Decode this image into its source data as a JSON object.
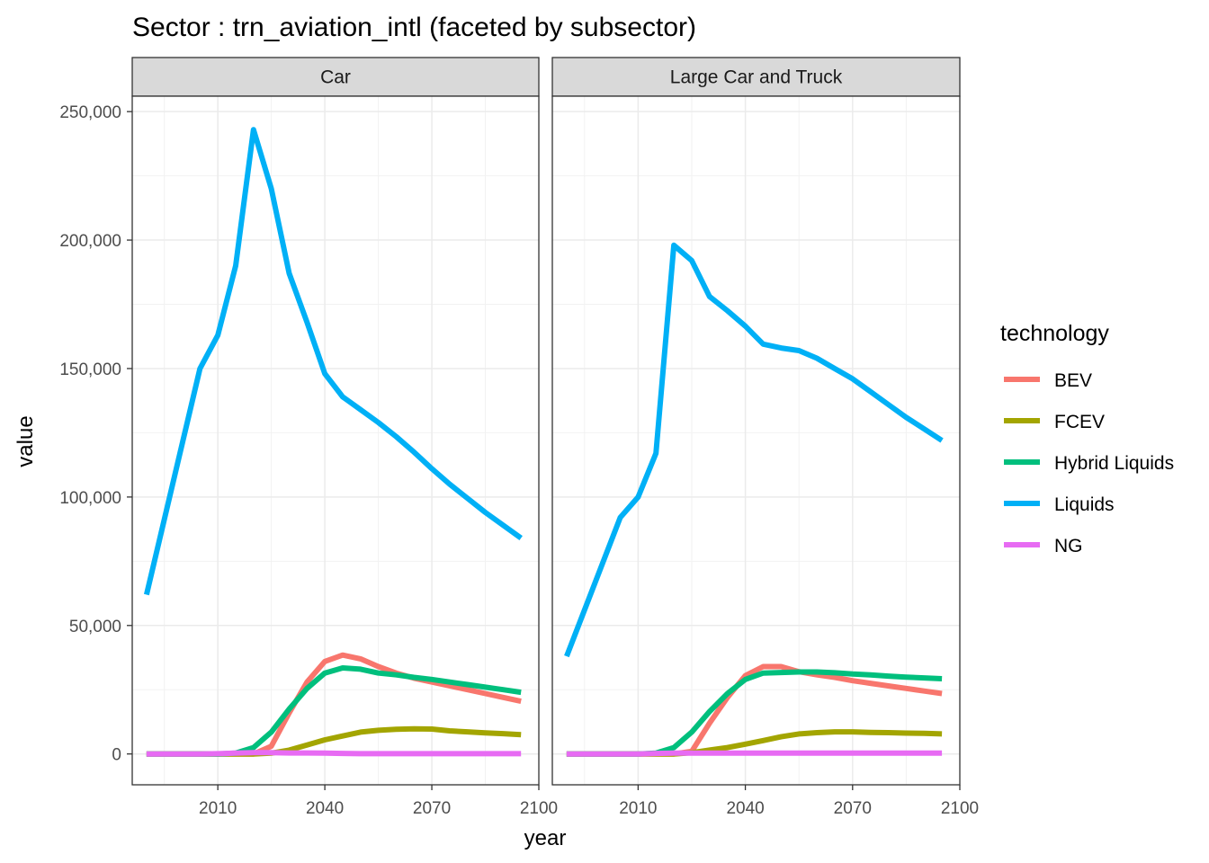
{
  "chart_data": {
    "type": "line",
    "title": "Sector : trn_aviation_intl (faceted by subsector)",
    "xlabel": "year",
    "ylabel": "value",
    "xlim": [
      1986,
      2100
    ],
    "ylim": [
      -12000,
      256000
    ],
    "x_ticks": [
      2010,
      2040,
      2070,
      2100
    ],
    "x_tick_labels": [
      "2010",
      "2040",
      "2070",
      "2100"
    ],
    "y_ticks": [
      0,
      50000,
      100000,
      150000,
      200000,
      250000
    ],
    "y_tick_labels": [
      "0",
      "50,000",
      "100,000",
      "150,000",
      "200,000",
      "250,000"
    ],
    "grid": true,
    "legend": {
      "title": "technology",
      "position": "right",
      "entries": [
        "BEV",
        "FCEV",
        "Hybrid Liquids",
        "Liquids",
        "NG"
      ]
    },
    "colors": {
      "BEV": "#F8766D",
      "FCEV": "#A3A500",
      "Hybrid Liquids": "#00BF7D",
      "Liquids": "#00B0F6",
      "NG": "#E76BF3"
    },
    "facets": [
      {
        "label": "Car",
        "series": [
          {
            "name": "Liquids",
            "x": [
              1990,
              2005,
              2010,
              2015,
              2020,
              2025,
              2030,
              2035,
              2040,
              2045,
              2050,
              2055,
              2060,
              2065,
              2070,
              2075,
              2080,
              2085,
              2090,
              2095
            ],
            "y": [
              62000,
              150000,
              163000,
              190000,
              243000,
              220000,
              187000,
              168000,
              148000,
              139000,
              134000,
              129000,
              123500,
              117500,
              111000,
              105000,
              99500,
              94000,
              89000,
              84000
            ]
          },
          {
            "name": "BEV",
            "x": [
              1990,
              2005,
              2010,
              2015,
              2020,
              2025,
              2030,
              2035,
              2040,
              2045,
              2050,
              2055,
              2060,
              2065,
              2070,
              2075,
              2080,
              2085,
              2090,
              2095
            ],
            "y": [
              0,
              0,
              0,
              0,
              0,
              3000,
              16000,
              28000,
              36000,
              38500,
              37000,
              34000,
              31500,
              29500,
              28000,
              26500,
              25000,
              23500,
              22000,
              20500
            ]
          },
          {
            "name": "FCEV",
            "x": [
              1990,
              2005,
              2010,
              2015,
              2020,
              2025,
              2030,
              2035,
              2040,
              2045,
              2050,
              2055,
              2060,
              2065,
              2070,
              2075,
              2080,
              2085,
              2090,
              2095
            ],
            "y": [
              0,
              0,
              0,
              0,
              0,
              300,
              1500,
              3500,
              5500,
              7000,
              8500,
              9200,
              9600,
              9800,
              9700,
              9000,
              8600,
              8200,
              7900,
              7500
            ]
          },
          {
            "name": "Hybrid Liquids",
            "x": [
              1990,
              2005,
              2010,
              2015,
              2020,
              2025,
              2030,
              2035,
              2040,
              2045,
              2050,
              2055,
              2060,
              2065,
              2070,
              2075,
              2080,
              2085,
              2090,
              2095
            ],
            "y": [
              0,
              0,
              0,
              300,
              2500,
              8500,
              17500,
              25500,
              31500,
              33500,
              33000,
              31500,
              30800,
              29800,
              29000,
              28000,
              27000,
              26000,
              25000,
              24000
            ]
          },
          {
            "name": "NG",
            "x": [
              1990,
              2005,
              2010,
              2015,
              2020,
              2025,
              2030,
              2035,
              2040,
              2045,
              2050,
              2055,
              2060,
              2065,
              2070,
              2075,
              2080,
              2085,
              2090,
              2095
            ],
            "y": [
              0,
              0,
              100,
              300,
              500,
              500,
              400,
              400,
              300,
              200,
              100,
              100,
              100,
              100,
              100,
              100,
              100,
              100,
              100,
              100
            ]
          }
        ]
      },
      {
        "label": "Large Car and Truck",
        "series": [
          {
            "name": "Liquids",
            "x": [
              1990,
              2005,
              2010,
              2015,
              2020,
              2025,
              2030,
              2035,
              2040,
              2045,
              2050,
              2055,
              2060,
              2065,
              2070,
              2075,
              2080,
              2085,
              2090,
              2095
            ],
            "y": [
              38000,
              92000,
              100000,
              117000,
              198000,
              192000,
              178000,
              172500,
              166500,
              159500,
              158000,
              157000,
              154000,
              150000,
              146000,
              141000,
              136000,
              131000,
              126500,
              122000
            ]
          },
          {
            "name": "BEV",
            "x": [
              1990,
              2005,
              2010,
              2015,
              2020,
              2025,
              2030,
              2035,
              2040,
              2045,
              2050,
              2055,
              2060,
              2065,
              2070,
              2075,
              2080,
              2085,
              2090,
              2095
            ],
            "y": [
              0,
              0,
              0,
              0,
              0,
              1000,
              12000,
              22000,
              30500,
              34000,
              34000,
              32000,
              30800,
              29800,
              28500,
              27500,
              26500,
              25500,
              24500,
              23500
            ]
          },
          {
            "name": "FCEV",
            "x": [
              1990,
              2005,
              2010,
              2015,
              2020,
              2025,
              2030,
              2035,
              2040,
              2045,
              2050,
              2055,
              2060,
              2065,
              2070,
              2075,
              2080,
              2085,
              2090,
              2095
            ],
            "y": [
              0,
              0,
              0,
              0,
              0,
              500,
              1500,
              2500,
              3800,
              5200,
              6700,
              7800,
              8300,
              8600,
              8600,
              8400,
              8300,
              8100,
              8000,
              7800
            ]
          },
          {
            "name": "Hybrid Liquids",
            "x": [
              1990,
              2005,
              2010,
              2015,
              2020,
              2025,
              2030,
              2035,
              2040,
              2045,
              2050,
              2055,
              2060,
              2065,
              2070,
              2075,
              2080,
              2085,
              2090,
              2095
            ],
            "y": [
              0,
              0,
              0,
              300,
              2500,
              8500,
              16500,
              23500,
              29000,
              31500,
              31700,
              31900,
              31900,
              31600,
              31100,
              30800,
              30300,
              29900,
              29600,
              29300
            ]
          },
          {
            "name": "NG",
            "x": [
              1990,
              2005,
              2010,
              2015,
              2020,
              2025,
              2030,
              2035,
              2040,
              2045,
              2050,
              2055,
              2060,
              2065,
              2070,
              2075,
              2080,
              2085,
              2090,
              2095
            ],
            "y": [
              0,
              0,
              0,
              200,
              300,
              300,
              300,
              300,
              300,
              300,
              300,
              300,
              300,
              300,
              300,
              300,
              300,
              300,
              300,
              300
            ]
          }
        ]
      }
    ]
  }
}
